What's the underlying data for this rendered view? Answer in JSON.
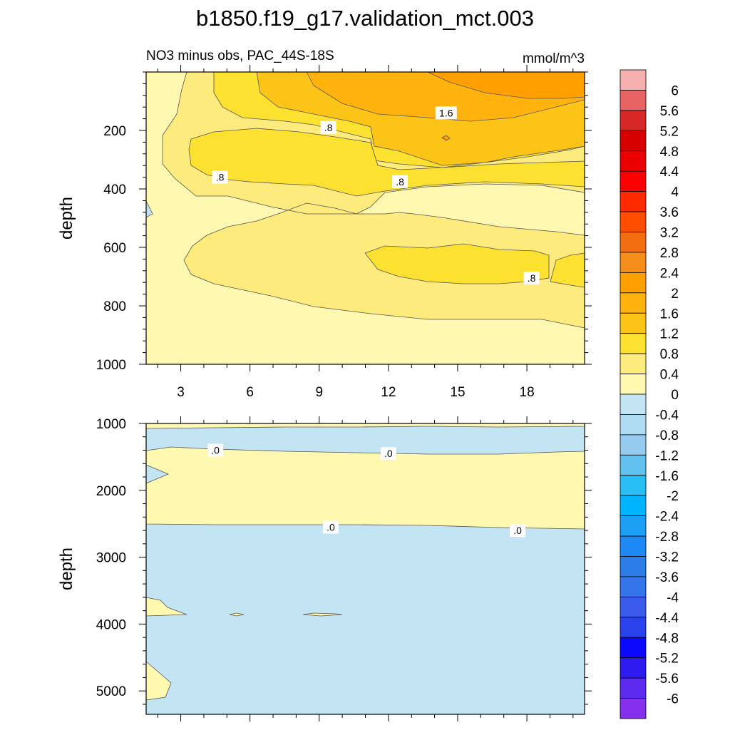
{
  "figure": {
    "title": "b1850.f19_g17.validation_mct.003",
    "subtitle_left": "NO3 minus obs, PAC_44S-18S",
    "subtitle_right": "mmol/m^3"
  },
  "colors": {
    "contour_line": "#555555",
    "label_box": "#ffffff"
  },
  "chart_data": [
    {
      "type": "heatmap",
      "panel": "upper",
      "xlabel": "",
      "ylabel": "depth",
      "xlim": [
        1.5,
        20.5
      ],
      "ylim": [
        1000,
        0
      ],
      "x_ticks": [
        3,
        6,
        9,
        12,
        15,
        18
      ],
      "y_ticks": [
        200,
        400,
        600,
        800,
        1000
      ],
      "contour_labels": [
        {
          "text": "1.6",
          "x": 14.5,
          "y": 140
        },
        {
          "text": ".8",
          "x": 9.4,
          "y": 190
        },
        {
          "text": ".8",
          "x": 4.7,
          "y": 360
        },
        {
          "text": ".8",
          "x": 12.5,
          "y": 375
        },
        {
          "text": ".8",
          "x": 18.2,
          "y": 705
        }
      ]
    },
    {
      "type": "heatmap",
      "panel": "lower",
      "xlabel": "",
      "ylabel": "depth",
      "xlim": [
        1.5,
        20.5
      ],
      "ylim": [
        5350,
        1000
      ],
      "y_ticks": [
        1000,
        2000,
        3000,
        4000,
        5000
      ],
      "contour_labels": [
        {
          "text": ".0",
          "x": 4.5,
          "y": 1400
        },
        {
          "text": ".0",
          "x": 12.0,
          "y": 1450
        },
        {
          "text": ".0",
          "x": 9.5,
          "y": 2550
        },
        {
          "text": ".0",
          "x": 17.6,
          "y": 2600
        }
      ]
    }
  ],
  "colorbar": {
    "levels": [
      "6",
      "5.6",
      "5.2",
      "4.8",
      "4.4",
      "4",
      "3.6",
      "3.2",
      "2.8",
      "2.4",
      "2",
      "1.6",
      "1.2",
      "0.8",
      "0.4",
      "0",
      "-0.4",
      "-0.8",
      "-1.2",
      "-1.6",
      "-2",
      "-2.4",
      "-2.8",
      "-3.2",
      "-3.6",
      "-4",
      "-4.4",
      "-4.8",
      "-5.2",
      "-5.6",
      "-6"
    ],
    "colors": [
      "#f7b0b0",
      "#e86464",
      "#d72828",
      "#d60000",
      "#ea0000",
      "#ff0000",
      "#ff2a00",
      "#ff4e00",
      "#f26e10",
      "#f58d1a",
      "#ffa000",
      "#ffb30c",
      "#fdc418",
      "#fce130",
      "#fdeb7e",
      "#fff8b0",
      "#c3e5f3",
      "#afdcf2",
      "#96cbef",
      "#62c1ef",
      "#29bff5",
      "#00b4ff",
      "#1ba0f5",
      "#1e89f5",
      "#2d7de8",
      "#3574ea",
      "#3b5bec",
      "#2a42ec",
      "#0a08ff",
      "#2d1bf0",
      "#5d2af0",
      "#8430ed"
    ]
  }
}
